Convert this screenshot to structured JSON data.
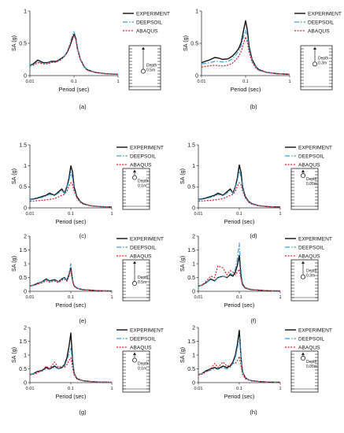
{
  "legend": {
    "experiment": "EXPERIMENT",
    "deepsoil": "DEEPSOIL",
    "abaqus": "ABAQUS"
  },
  "colors": {
    "experiment": "#111111",
    "deepsoil": "#3d9fd6",
    "abaqus": "#d4242a"
  },
  "axis": {
    "xlabel": "Period (sec)",
    "ylabel": "SA (g)"
  },
  "chart_data": [
    {
      "type": "line",
      "panel": "(a)",
      "xscale": "log",
      "xlim": [
        0.01,
        1
      ],
      "ylim": [
        0,
        1
      ],
      "xticks": [
        "0.01",
        "0.1",
        "1"
      ],
      "yticks": [
        "0",
        "0.5",
        "1"
      ],
      "x": [
        0.01,
        0.012,
        0.015,
        0.02,
        0.025,
        0.03,
        0.04,
        0.05,
        0.06,
        0.07,
        0.08,
        0.09,
        0.1,
        0.11,
        0.12,
        0.14,
        0.17,
        0.2,
        0.3,
        0.5,
        1.0
      ],
      "series": [
        {
          "name": "EXPERIMENT",
          "values": [
            0.16,
            0.18,
            0.24,
            0.2,
            0.2,
            0.22,
            0.22,
            0.26,
            0.3,
            0.36,
            0.45,
            0.55,
            0.64,
            0.58,
            0.42,
            0.25,
            0.14,
            0.09,
            0.05,
            0.03,
            0.02
          ]
        },
        {
          "name": "DEEPSOIL",
          "values": [
            0.16,
            0.17,
            0.21,
            0.19,
            0.19,
            0.21,
            0.21,
            0.25,
            0.3,
            0.37,
            0.48,
            0.6,
            0.68,
            0.6,
            0.42,
            0.25,
            0.14,
            0.09,
            0.05,
            0.03,
            0.02
          ]
        },
        {
          "name": "ABAQUS",
          "values": [
            0.15,
            0.16,
            0.2,
            0.18,
            0.18,
            0.2,
            0.21,
            0.24,
            0.29,
            0.35,
            0.46,
            0.57,
            0.62,
            0.56,
            0.4,
            0.24,
            0.13,
            0.08,
            0.05,
            0.03,
            0.02
          ]
        }
      ],
      "depth": "0.5m"
    },
    {
      "type": "line",
      "panel": "(b)",
      "xscale": "log",
      "xlim": [
        0.01,
        1
      ],
      "ylim": [
        0,
        1
      ],
      "xticks": [
        "0.01",
        "0.1",
        "1"
      ],
      "yticks": [
        "0",
        "0.5",
        "1"
      ],
      "x": [
        0.01,
        0.012,
        0.015,
        0.02,
        0.025,
        0.03,
        0.04,
        0.05,
        0.06,
        0.07,
        0.08,
        0.09,
        0.1,
        0.11,
        0.12,
        0.14,
        0.17,
        0.2,
        0.3,
        0.5,
        1.0
      ],
      "series": [
        {
          "name": "EXPERIMENT",
          "values": [
            0.2,
            0.22,
            0.24,
            0.28,
            0.27,
            0.25,
            0.26,
            0.3,
            0.36,
            0.42,
            0.52,
            0.7,
            0.85,
            0.7,
            0.45,
            0.25,
            0.14,
            0.09,
            0.05,
            0.03,
            0.02
          ]
        },
        {
          "name": "DEEPSOIL",
          "values": [
            0.18,
            0.19,
            0.2,
            0.22,
            0.22,
            0.21,
            0.22,
            0.26,
            0.32,
            0.38,
            0.47,
            0.6,
            0.7,
            0.6,
            0.4,
            0.23,
            0.13,
            0.08,
            0.05,
            0.03,
            0.02
          ]
        },
        {
          "name": "ABAQUS",
          "values": [
            0.13,
            0.14,
            0.15,
            0.16,
            0.15,
            0.15,
            0.16,
            0.19,
            0.24,
            0.3,
            0.38,
            0.5,
            0.6,
            0.52,
            0.36,
            0.21,
            0.12,
            0.08,
            0.05,
            0.03,
            0.02
          ]
        }
      ],
      "depth": "0.3m"
    },
    {
      "type": "line",
      "panel": "(c)",
      "xscale": "log",
      "xlim": [
        0.01,
        1
      ],
      "ylim": [
        0,
        1.5
      ],
      "xticks": [
        "0.01",
        "0.1",
        "1"
      ],
      "yticks": [
        "0",
        "0.5",
        "1",
        "1.5"
      ],
      "x": [
        0.01,
        0.012,
        0.015,
        0.02,
        0.025,
        0.03,
        0.04,
        0.05,
        0.06,
        0.07,
        0.08,
        0.09,
        0.1,
        0.11,
        0.12,
        0.14,
        0.17,
        0.2,
        0.3,
        0.5,
        1.0
      ],
      "series": [
        {
          "name": "EXPERIMENT",
          "values": [
            0.2,
            0.21,
            0.23,
            0.27,
            0.3,
            0.35,
            0.3,
            0.38,
            0.45,
            0.35,
            0.5,
            0.7,
            1.0,
            0.85,
            0.5,
            0.27,
            0.15,
            0.1,
            0.05,
            0.03,
            0.02
          ]
        },
        {
          "name": "DEEPSOIL",
          "values": [
            0.19,
            0.2,
            0.22,
            0.25,
            0.28,
            0.32,
            0.29,
            0.35,
            0.42,
            0.34,
            0.47,
            0.65,
            0.85,
            0.7,
            0.45,
            0.25,
            0.14,
            0.09,
            0.05,
            0.03,
            0.02
          ]
        },
        {
          "name": "ABAQUS",
          "values": [
            0.16,
            0.16,
            0.17,
            0.18,
            0.19,
            0.2,
            0.22,
            0.26,
            0.3,
            0.32,
            0.4,
            0.52,
            0.6,
            0.55,
            0.4,
            0.24,
            0.13,
            0.09,
            0.05,
            0.03,
            0.02
          ]
        }
      ],
      "depth": "0.1m"
    },
    {
      "type": "line",
      "panel": "(d)",
      "xscale": "log",
      "xlim": [
        0.01,
        1
      ],
      "ylim": [
        0,
        1.5
      ],
      "xticks": [
        "0.01",
        "0.1",
        "1"
      ],
      "yticks": [
        "0",
        "0.5",
        "1",
        "1.5"
      ],
      "x": [
        0.01,
        0.012,
        0.015,
        0.02,
        0.025,
        0.03,
        0.04,
        0.05,
        0.06,
        0.07,
        0.08,
        0.09,
        0.1,
        0.11,
        0.12,
        0.14,
        0.17,
        0.2,
        0.3,
        0.5,
        1.0
      ],
      "series": [
        {
          "name": "EXPERIMENT",
          "values": [
            0.2,
            0.21,
            0.23,
            0.27,
            0.3,
            0.35,
            0.3,
            0.38,
            0.45,
            0.35,
            0.5,
            0.72,
            1.02,
            0.85,
            0.5,
            0.27,
            0.15,
            0.1,
            0.05,
            0.03,
            0.02
          ]
        },
        {
          "name": "DEEPSOIL",
          "values": [
            0.19,
            0.2,
            0.22,
            0.25,
            0.28,
            0.32,
            0.29,
            0.35,
            0.42,
            0.34,
            0.48,
            0.66,
            0.88,
            0.72,
            0.46,
            0.25,
            0.14,
            0.09,
            0.05,
            0.03,
            0.02
          ]
        },
        {
          "name": "ABAQUS",
          "values": [
            0.16,
            0.16,
            0.17,
            0.18,
            0.19,
            0.2,
            0.22,
            0.26,
            0.3,
            0.32,
            0.4,
            0.52,
            0.6,
            0.55,
            0.4,
            0.24,
            0.13,
            0.09,
            0.05,
            0.03,
            0.02
          ]
        }
      ],
      "depth": "0.05m"
    },
    {
      "type": "line",
      "panel": "(e)",
      "xscale": "log",
      "xlim": [
        0.01,
        1
      ],
      "ylim": [
        0,
        2
      ],
      "xticks": [
        "0.01",
        "0.1",
        "1"
      ],
      "yticks": [
        "0",
        "0.5",
        "1",
        "1.5",
        "2"
      ],
      "x": [
        0.01,
        0.012,
        0.015,
        0.02,
        0.025,
        0.03,
        0.04,
        0.05,
        0.06,
        0.07,
        0.08,
        0.09,
        0.1,
        0.11,
        0.12,
        0.14,
        0.17,
        0.2,
        0.3,
        0.5,
        1.0
      ],
      "series": [
        {
          "name": "EXPERIMENT",
          "values": [
            0.2,
            0.22,
            0.28,
            0.35,
            0.45,
            0.38,
            0.42,
            0.35,
            0.45,
            0.5,
            0.4,
            0.6,
            0.85,
            0.4,
            0.2,
            0.12,
            0.08,
            0.06,
            0.04,
            0.02,
            0.01
          ]
        },
        {
          "name": "DEEPSOIL",
          "values": [
            0.2,
            0.22,
            0.27,
            0.34,
            0.42,
            0.36,
            0.4,
            0.34,
            0.44,
            0.48,
            0.42,
            0.65,
            1.0,
            0.45,
            0.22,
            0.13,
            0.08,
            0.06,
            0.04,
            0.02,
            0.01
          ]
        },
        {
          "name": "ABAQUS",
          "values": [
            0.19,
            0.21,
            0.25,
            0.31,
            0.38,
            0.33,
            0.37,
            0.31,
            0.4,
            0.44,
            0.36,
            0.55,
            0.8,
            0.38,
            0.19,
            0.11,
            0.07,
            0.05,
            0.04,
            0.02,
            0.01
          ]
        }
      ],
      "depth": "0.5m"
    },
    {
      "type": "line",
      "panel": "(f)",
      "xscale": "log",
      "xlim": [
        0.01,
        1
      ],
      "ylim": [
        0,
        2
      ],
      "xticks": [
        "0.01",
        "0.1",
        "1"
      ],
      "yticks": [
        "0",
        "0.5",
        "1",
        "1.5",
        "2"
      ],
      "x": [
        0.01,
        0.012,
        0.015,
        0.02,
        0.025,
        0.03,
        0.04,
        0.05,
        0.06,
        0.07,
        0.08,
        0.09,
        0.1,
        0.11,
        0.12,
        0.14,
        0.17,
        0.2,
        0.3,
        0.5,
        1.0
      ],
      "series": [
        {
          "name": "EXPERIMENT",
          "values": [
            0.2,
            0.22,
            0.3,
            0.45,
            0.38,
            0.5,
            0.55,
            0.5,
            0.6,
            0.55,
            0.7,
            0.95,
            1.3,
            0.55,
            0.25,
            0.12,
            0.08,
            0.06,
            0.04,
            0.02,
            0.01
          ]
        },
        {
          "name": "DEEPSOIL",
          "values": [
            0.2,
            0.22,
            0.3,
            0.42,
            0.36,
            0.5,
            0.55,
            0.5,
            0.65,
            0.6,
            0.8,
            1.2,
            1.75,
            0.7,
            0.3,
            0.14,
            0.09,
            0.06,
            0.04,
            0.02,
            0.01
          ]
        },
        {
          "name": "ABAQUS",
          "values": [
            0.18,
            0.2,
            0.35,
            0.55,
            0.5,
            0.92,
            0.85,
            0.6,
            0.75,
            0.7,
            0.6,
            0.7,
            0.8,
            0.45,
            0.22,
            0.12,
            0.08,
            0.06,
            0.04,
            0.02,
            0.01
          ]
        }
      ],
      "depth": "0.3m"
    },
    {
      "type": "line",
      "panel": "(g)",
      "xscale": "log",
      "xlim": [
        0.01,
        1
      ],
      "ylim": [
        0,
        2
      ],
      "xticks": [
        "0.01",
        "0.1",
        "1"
      ],
      "yticks": [
        "0",
        "0.5",
        "1",
        "1.5",
        "2"
      ],
      "x": [
        0.01,
        0.012,
        0.015,
        0.02,
        0.025,
        0.03,
        0.04,
        0.05,
        0.06,
        0.07,
        0.08,
        0.09,
        0.1,
        0.11,
        0.12,
        0.14,
        0.17,
        0.2,
        0.3,
        0.5,
        1.0
      ],
      "series": [
        {
          "name": "EXPERIMENT",
          "values": [
            0.3,
            0.32,
            0.4,
            0.45,
            0.55,
            0.5,
            0.6,
            0.5,
            0.55,
            0.65,
            0.9,
            1.3,
            1.8,
            0.8,
            0.35,
            0.15,
            0.1,
            0.07,
            0.04,
            0.02,
            0.01
          ]
        },
        {
          "name": "DEEPSOIL",
          "values": [
            0.3,
            0.32,
            0.38,
            0.42,
            0.5,
            0.48,
            0.55,
            0.5,
            0.52,
            0.6,
            0.8,
            1.05,
            1.25,
            0.7,
            0.32,
            0.15,
            0.1,
            0.07,
            0.04,
            0.02,
            0.01
          ]
        },
        {
          "name": "ABAQUS",
          "values": [
            0.28,
            0.3,
            0.35,
            0.45,
            0.6,
            0.5,
            0.75,
            0.55,
            0.6,
            0.55,
            0.65,
            0.8,
            0.9,
            0.55,
            0.28,
            0.13,
            0.09,
            0.06,
            0.04,
            0.02,
            0.01
          ]
        }
      ],
      "depth": "0.1m"
    },
    {
      "type": "line",
      "panel": "(h)",
      "xscale": "log",
      "xlim": [
        0.01,
        1
      ],
      "ylim": [
        0,
        2
      ],
      "xticks": [
        "0.01",
        "0.1",
        "1"
      ],
      "yticks": [
        "0",
        "0.5",
        "1",
        "1.5",
        "2"
      ],
      "x": [
        0.01,
        0.012,
        0.015,
        0.02,
        0.025,
        0.03,
        0.04,
        0.05,
        0.06,
        0.07,
        0.08,
        0.09,
        0.1,
        0.11,
        0.12,
        0.14,
        0.17,
        0.2,
        0.3,
        0.5,
        1.0
      ],
      "series": [
        {
          "name": "EXPERIMENT",
          "values": [
            0.3,
            0.32,
            0.42,
            0.5,
            0.55,
            0.5,
            0.6,
            0.55,
            0.6,
            0.75,
            1.0,
            1.4,
            1.9,
            0.9,
            0.4,
            0.18,
            0.1,
            0.07,
            0.04,
            0.02,
            0.01
          ]
        },
        {
          "name": "DEEPSOIL",
          "values": [
            0.3,
            0.32,
            0.4,
            0.45,
            0.5,
            0.48,
            0.55,
            0.5,
            0.55,
            0.7,
            0.9,
            1.25,
            1.65,
            0.85,
            0.38,
            0.17,
            0.1,
            0.07,
            0.04,
            0.02,
            0.01
          ]
        },
        {
          "name": "ABAQUS",
          "values": [
            0.28,
            0.3,
            0.38,
            0.5,
            0.7,
            0.55,
            0.75,
            0.6,
            0.65,
            0.7,
            0.7,
            0.8,
            0.95,
            0.6,
            0.3,
            0.14,
            0.09,
            0.06,
            0.04,
            0.02,
            0.01
          ]
        }
      ],
      "depth": "0.05m"
    }
  ]
}
